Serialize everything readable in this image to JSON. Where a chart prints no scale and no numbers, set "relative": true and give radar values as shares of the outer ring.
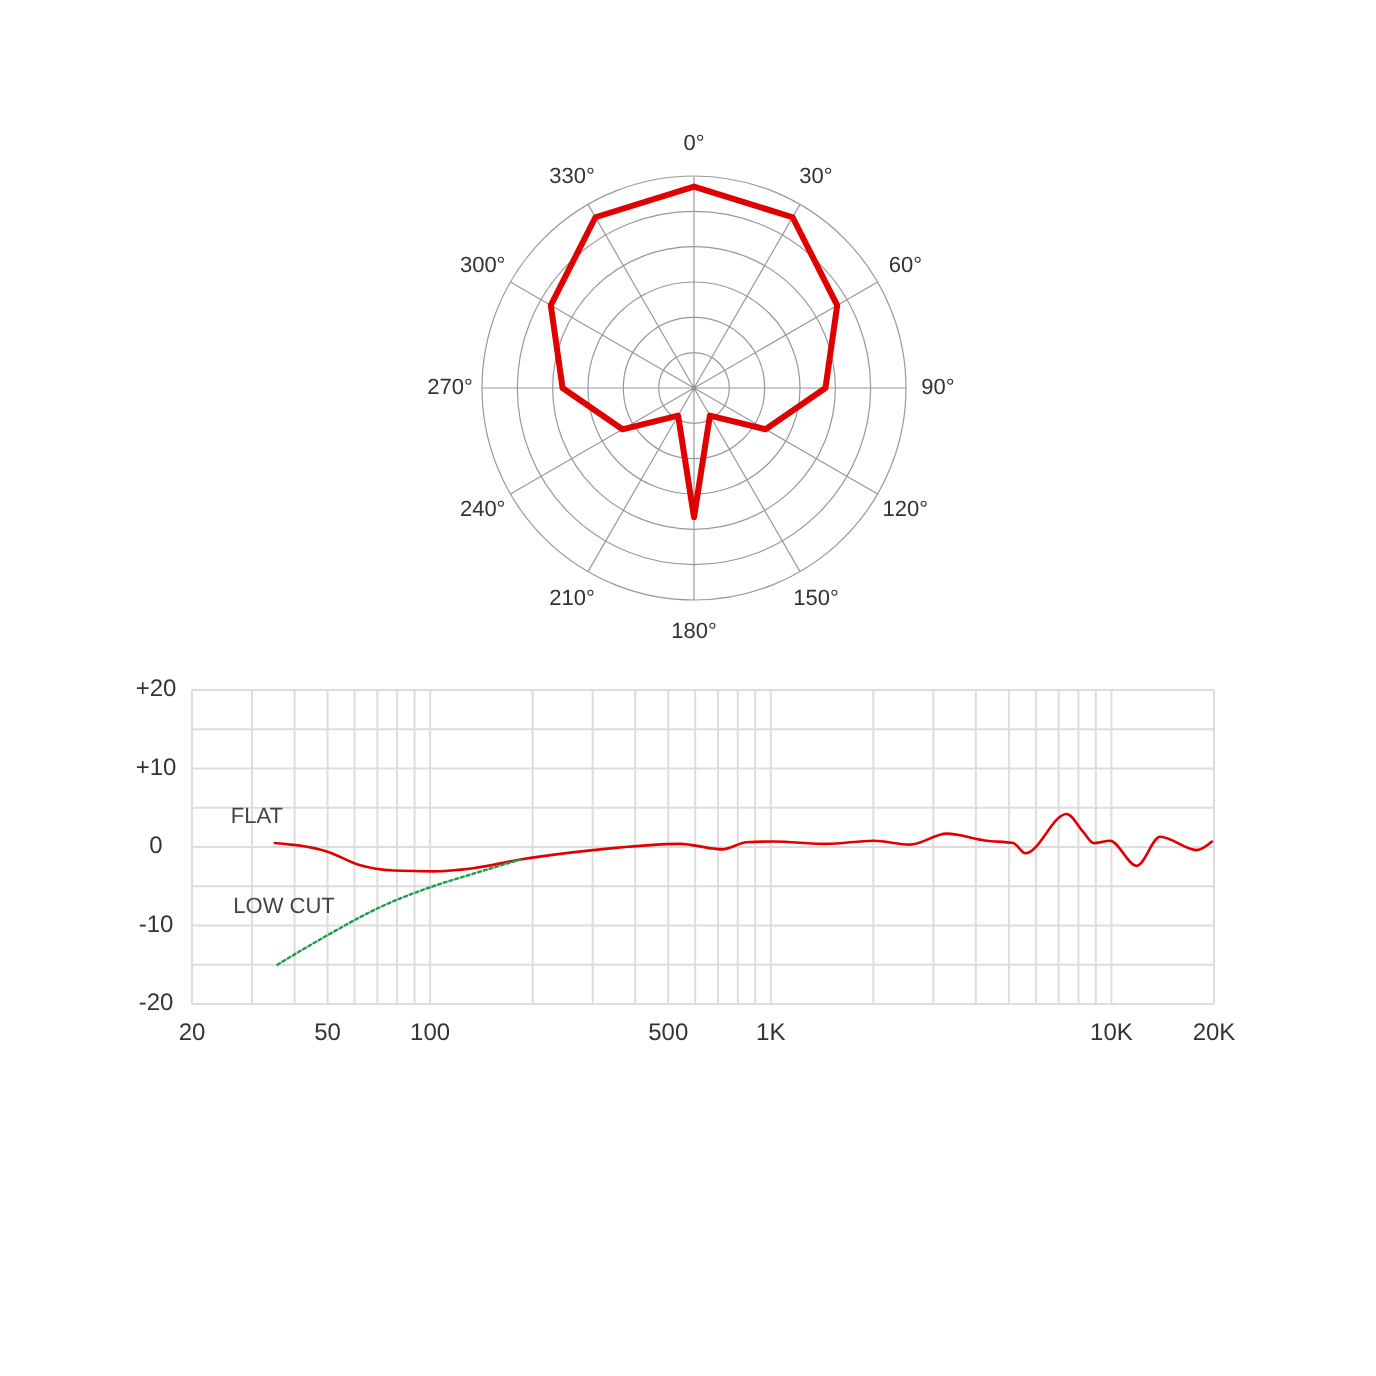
{
  "chart_data": [
    {
      "type": "radar",
      "relative": true,
      "grid": true,
      "categories": [
        "0°",
        "30°",
        "60°",
        "90°",
        "120°",
        "150°",
        "180°",
        "210°",
        "240°",
        "270°",
        "300°",
        "330°"
      ],
      "series": [
        {
          "color": "#e00000",
          "values": [
            0.95,
            0.93,
            0.78,
            0.62,
            0.39,
            0.15,
            0.61,
            0.15,
            0.39,
            0.62,
            0.78,
            0.93
          ]
        }
      ]
    },
    {
      "type": "line",
      "log": "x",
      "grid": true,
      "xlim": [
        20,
        20000
      ],
      "ylim": [
        -20,
        20
      ],
      "xticks": [
        20,
        {
          "value": 30,
          "label": null
        },
        {
          "value": 40,
          "label": null
        },
        50,
        {
          "value": 60,
          "label": null
        },
        {
          "value": 70,
          "label": null
        },
        {
          "value": 80,
          "label": null
        },
        {
          "value": 90,
          "label": null
        },
        100,
        {
          "value": 200,
          "label": null
        },
        {
          "value": 300,
          "label": null
        },
        {
          "value": 400,
          "label": null
        },
        500,
        {
          "value": 600,
          "label": null
        },
        {
          "value": 700,
          "label": null
        },
        {
          "value": 800,
          "label": null
        },
        {
          "value": 900,
          "label": null
        },
        {
          "value": 1000,
          "label": "1K"
        },
        {
          "value": 2000,
          "label": null
        },
        {
          "value": 3000,
          "label": null
        },
        {
          "value": 4000,
          "label": null
        },
        {
          "value": 5000,
          "label": null
        },
        {
          "value": 6000,
          "label": null
        },
        {
          "value": 7000,
          "label": null
        },
        {
          "value": 8000,
          "label": null
        },
        {
          "value": 9000,
          "label": null
        },
        {
          "value": 10000,
          "label": "10K"
        },
        {
          "value": 20000,
          "label": "20K"
        }
      ],
      "yticks": [
        {
          "value": -20,
          "label": "-20"
        },
        {
          "value": -15,
          "label": null
        },
        {
          "value": -10,
          "label": "-10"
        },
        {
          "value": -5,
          "label": null
        },
        0,
        {
          "value": 5,
          "label": null
        },
        {
          "value": 10,
          "label": "+10"
        },
        {
          "value": 15,
          "label": null
        },
        {
          "value": 20,
          "label": "+20"
        }
      ],
      "series": [
        {
          "name": "FLAT",
          "color": "#e00000",
          "line_style": "solid",
          "x": [
            35,
            50,
            62,
            78,
            102,
            134,
            184,
            301,
            542,
            679,
            722,
            848,
            1019,
            1460,
            2000,
            2564,
            3284,
            4300,
            5150,
            5590,
            7380,
            8270,
            8860,
            9900,
            11860,
            13900,
            17790,
            19730
          ],
          "values": [
            0.5,
            -0.6,
            -2.3,
            -3.0,
            -3.1,
            -2.7,
            -1.6,
            -0.4,
            0.4,
            -0.2,
            -0.3,
            0.6,
            0.7,
            0.4,
            0.8,
            0.3,
            1.7,
            0.8,
            0.5,
            -0.8,
            4.2,
            1.9,
            0.5,
            0.8,
            -2.4,
            1.3,
            -0.4,
            0.7
          ]
        },
        {
          "name": "LOW CUT",
          "color": "#1a9e4a",
          "line_style": "dotted",
          "x": [
            35.6,
            50.6,
            71,
            102,
            134,
            184
          ],
          "values": [
            -15,
            -11.1,
            -7.7,
            -5,
            -3.4,
            -1.6
          ]
        }
      ]
    }
  ]
}
